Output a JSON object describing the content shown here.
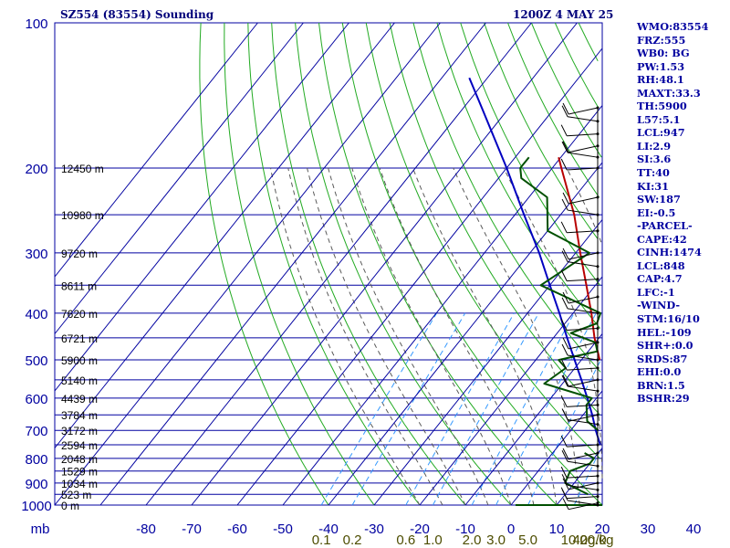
{
  "header": {
    "title": "SZ554 (83554) Sounding",
    "datetime": "1200Z  4 MAY 25"
  },
  "indices": [
    "WMO:83554",
    "FRZ:555",
    "WB0: BG",
    "PW:1.53",
    "RH:48.1",
    "MAXT:33.3",
    "TH:5900",
    "L57:5.1",
    "LCL:947",
    "LI:2.9",
    "SI:3.6",
    "TT:40",
    "KI:31",
    "SW:187",
    "EI:-0.5",
    "-PARCEL-",
    "CAPE:42",
    "CINH:1474",
    "LCL:848",
    "CAP:4.7",
    "LFC:-1",
    "-WIND-",
    "STM:16/10",
    "HEL:-109",
    "SHR+:0.0",
    "SRDS:87",
    "EHI:0.0",
    "BRN:1.5",
    "BSHR:29"
  ],
  "colors": {
    "grid": "#0000a0",
    "dry_adiabat": "#22aa22",
    "moist_adiabat": "#5a5a5a",
    "mixing_ratio": "#3399ff",
    "temperature": "#b80000",
    "dewpoint": "#005000",
    "parcel": "#0000c0",
    "wind": "#000000",
    "mixing_ratio_label": "#4d4d00",
    "height_label": "#000000"
  },
  "chart_data": {
    "type": "skew-t",
    "xlabel": "mb",
    "temperature_ticks": [
      -80,
      -70,
      -60,
      -50,
      -40,
      -30,
      -20,
      -10,
      0,
      10,
      20,
      30,
      40
    ],
    "pressure_ticks": [
      100,
      200,
      300,
      400,
      500,
      600,
      700,
      800,
      900,
      1000
    ],
    "height_labels": [
      {
        "p": 200,
        "text": "12450 m"
      },
      {
        "p": 250,
        "text": "10980 m"
      },
      {
        "p": 300,
        "text": "9720 m"
      },
      {
        "p": 350,
        "text": "8611 m"
      },
      {
        "p": 400,
        "text": "7620 m"
      },
      {
        "p": 450,
        "text": "6721 m"
      },
      {
        "p": 500,
        "text": "5900 m"
      },
      {
        "p": 550,
        "text": "5140 m"
      },
      {
        "p": 600,
        "text": "4439 m"
      },
      {
        "p": 650,
        "text": "3784 m"
      },
      {
        "p": 700,
        "text": "3172 m"
      },
      {
        "p": 750,
        "text": "2594 m"
      },
      {
        "p": 800,
        "text": "2048 m"
      },
      {
        "p": 850,
        "text": "1529 m"
      },
      {
        "p": 900,
        "text": "1034 m"
      },
      {
        "p": 950,
        "text": "523 m"
      },
      {
        "p": 1000,
        "text": "0 m"
      }
    ],
    "mixing_ratio_labels": [
      "0.1",
      "0.2",
      "0.6",
      "1.0",
      "2.0",
      "3.0",
      "5.0",
      "10.0",
      "20.0",
      "40g/kg"
    ],
    "mixing_ratio_values": [
      0.1,
      0.2,
      0.6,
      1.0,
      2.0,
      3.0,
      5.0,
      10.0,
      20.0,
      40.0
    ],
    "temperature": [
      {
        "p": 1000,
        "t": 26.0
      },
      {
        "p": 990,
        "t": 27.0
      },
      {
        "p": 975,
        "t": 28.0
      },
      {
        "p": 950,
        "t": 26.0
      },
      {
        "p": 925,
        "t": 24.5
      },
      {
        "p": 900,
        "t": 23.0
      },
      {
        "p": 850,
        "t": 20.0
      },
      {
        "p": 800,
        "t": 17.5
      },
      {
        "p": 750,
        "t": 14.0
      },
      {
        "p": 700,
        "t": 10.5
      },
      {
        "p": 650,
        "t": 6.0
      },
      {
        "p": 600,
        "t": 4.5
      },
      {
        "p": 550,
        "t": -1.0
      },
      {
        "p": 500,
        "t": -6.0
      },
      {
        "p": 450,
        "t": -11.0
      },
      {
        "p": 400,
        "t": -16.0
      },
      {
        "p": 350,
        "t": -22.0
      },
      {
        "p": 300,
        "t": -29.0
      },
      {
        "p": 250,
        "t": -37.0
      },
      {
        "p": 200,
        "t": -48.0
      },
      {
        "p": 190,
        "t": -50.5
      }
    ],
    "dewpoint": [
      {
        "p": 1000,
        "td": 1.0
      },
      {
        "p": 1000,
        "td": 20.0
      },
      {
        "p": 975,
        "td": 21.0
      },
      {
        "p": 950,
        "td": 15.0
      },
      {
        "p": 900,
        "td": 8.0
      },
      {
        "p": 850,
        "td": 7.0
      },
      {
        "p": 820,
        "td": 10.0
      },
      {
        "p": 800,
        "td": 10.0
      },
      {
        "p": 780,
        "td": 7.0
      },
      {
        "p": 760,
        "td": 10.0
      },
      {
        "p": 740,
        "td": 12.0
      },
      {
        "p": 700,
        "td": 6.0
      },
      {
        "p": 670,
        "td": 2.0
      },
      {
        "p": 620,
        "td": -1.0
      },
      {
        "p": 600,
        "td": -1.0
      },
      {
        "p": 560,
        "td": -14.0
      },
      {
        "p": 520,
        "td": -12.0
      },
      {
        "p": 500,
        "td": -15.0
      },
      {
        "p": 480,
        "td": -8.0
      },
      {
        "p": 460,
        "td": -10.0
      },
      {
        "p": 440,
        "td": -17.0
      },
      {
        "p": 420,
        "td": -13.0
      },
      {
        "p": 400,
        "td": -14.0
      },
      {
        "p": 350,
        "td": -32.0
      },
      {
        "p": 300,
        "td": -27.0
      },
      {
        "p": 270,
        "td": -40.0
      },
      {
        "p": 230,
        "td": -46.0
      },
      {
        "p": 210,
        "td": -55.0
      },
      {
        "p": 200,
        "td": -57.0
      },
      {
        "p": 190,
        "td": -57.0
      }
    ],
    "parcel": [
      {
        "p": 1000,
        "t": 31.5
      },
      {
        "p": 950,
        "t": 22.0
      },
      {
        "p": 900,
        "t": 17.0
      },
      {
        "p": 850,
        "t": 14.5
      },
      {
        "p": 800,
        "t": 12.0
      },
      {
        "p": 750,
        "t": 9.0
      },
      {
        "p": 700,
        "t": 5.5
      },
      {
        "p": 650,
        "t": 2.0
      },
      {
        "p": 600,
        "t": -2.0
      },
      {
        "p": 550,
        "t": -6.5
      },
      {
        "p": 500,
        "t": -11.5
      },
      {
        "p": 450,
        "t": -17.0
      },
      {
        "p": 400,
        "t": -23.0
      },
      {
        "p": 350,
        "t": -30.0
      },
      {
        "p": 300,
        "t": -38.0
      },
      {
        "p": 250,
        "t": -48.0
      },
      {
        "p": 200,
        "t": -60.0
      },
      {
        "p": 150,
        "t": -76.0
      },
      {
        "p": 130,
        "t": -84.0
      }
    ],
    "wind_pressures": [
      150,
      160,
      170,
      180,
      190,
      200,
      230,
      250,
      270,
      300,
      320,
      340,
      370,
      400,
      430,
      460,
      500,
      520,
      550,
      580,
      620,
      650,
      680,
      750,
      780,
      830,
      870,
      900,
      930,
      960,
      990,
      1000
    ]
  }
}
